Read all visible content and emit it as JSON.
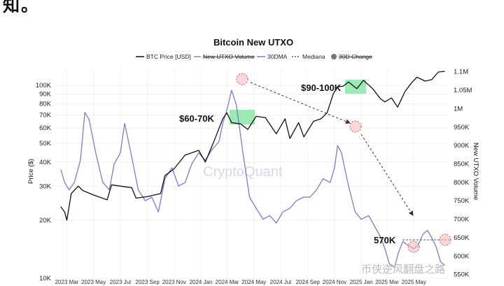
{
  "header_fragment": "知。",
  "chart_data": {
    "type": "line",
    "title": "Bitcoin New UTXO",
    "legend": [
      {
        "label": "BTC Price [USD]",
        "style": "solid",
        "color": "#111111",
        "struck": false
      },
      {
        "label": "New UTXO Volume",
        "style": "solid",
        "color": "#8a8a8a",
        "struck": true
      },
      {
        "label": "30DMA",
        "style": "solid",
        "color": "#7b7bcf",
        "struck": false
      },
      {
        "label": "Mediana",
        "style": "dashed",
        "color": "#555555",
        "struck": false
      },
      {
        "label": "30D Change",
        "style": "dot",
        "color": "#777777",
        "struck": true
      }
    ],
    "legend_position": "top-center",
    "grid": true,
    "x_tick_labels": [
      "2023 Mar",
      "2023 May",
      "2023 Jul",
      "2023 Sep",
      "2023 Nov",
      "2024 Jan",
      "2024 Mar",
      "2024 May",
      "2024 Jul",
      "2024 Sep",
      "2024 Nov",
      "2025 Jan",
      "2025 Mar",
      "2025 May"
    ],
    "y_left": {
      "label": "Price ($)",
      "scale": "log",
      "range": [
        10000,
        120000
      ],
      "tick_labels": [
        "100K",
        "90K",
        "80K",
        "70K",
        "60K",
        "50K",
        "40K",
        "30K",
        "20K",
        "10K"
      ],
      "tick_values": [
        100000,
        90000,
        80000,
        70000,
        60000,
        50000,
        40000,
        30000,
        20000,
        10000
      ]
    },
    "y_right": {
      "label": "New UTXO Volume",
      "range": [
        540000,
        1105000
      ],
      "tick_labels": [
        "1.1M",
        "1.05M",
        "1M",
        "950K",
        "900K",
        "850K",
        "800K",
        "750K",
        "700K",
        "650K",
        "600K",
        "550K"
      ],
      "tick_values": [
        1100000,
        1050000,
        1000000,
        950000,
        900000,
        850000,
        800000,
        750000,
        700000,
        650000,
        600000,
        550000
      ]
    },
    "series": [
      {
        "name": "BTC Price [USD]",
        "axis": "left",
        "x": [
          "2023-03-01",
          "2023-03-10",
          "2023-03-15",
          "2023-03-25",
          "2023-04-10",
          "2023-04-20",
          "2023-05-15",
          "2023-06-15",
          "2023-06-25",
          "2023-07-15",
          "2023-08-10",
          "2023-08-20",
          "2023-09-15",
          "2023-10-15",
          "2023-10-25",
          "2023-11-15",
          "2023-12-10",
          "2024-01-10",
          "2024-01-25",
          "2024-02-15",
          "2024-02-28",
          "2024-03-05",
          "2024-03-14",
          "2024-03-25",
          "2024-04-15",
          "2024-05-01",
          "2024-05-20",
          "2024-06-10",
          "2024-07-05",
          "2024-07-25",
          "2024-08-05",
          "2024-08-25",
          "2024-09-06",
          "2024-09-28",
          "2024-10-15",
          "2024-10-29",
          "2024-11-12",
          "2024-11-22",
          "2024-12-05",
          "2024-12-17",
          "2025-01-05",
          "2025-01-20",
          "2025-02-10",
          "2025-02-28",
          "2025-03-10",
          "2025-03-25",
          "2025-04-08",
          "2025-04-25",
          "2025-05-10",
          "2025-05-22",
          "2025-06-10",
          "2025-06-25",
          "2025-07-10",
          "2025-07-25"
        ],
        "values": [
          23500,
          22000,
          20000,
          27500,
          30000,
          28500,
          27000,
          25500,
          30500,
          30000,
          29500,
          26000,
          26500,
          27500,
          34000,
          37000,
          43500,
          46000,
          40000,
          52000,
          62000,
          67000,
          72000,
          64000,
          63000,
          59000,
          69000,
          68000,
          56000,
          67000,
          53000,
          64000,
          54000,
          65000,
          67000,
          72000,
          90000,
          98000,
          99000,
          104000,
          96000,
          106000,
          96000,
          85000,
          82000,
          86000,
          77000,
          93000,
          103000,
          110000,
          105000,
          107000,
          117000,
          118000
        ]
      },
      {
        "name": "30DMA",
        "axis": "right",
        "x": [
          "2023-03-01",
          "2023-03-10",
          "2023-03-20",
          "2023-04-01",
          "2023-04-15",
          "2023-04-25",
          "2023-05-05",
          "2023-05-20",
          "2023-06-05",
          "2023-06-20",
          "2023-07-01",
          "2023-07-15",
          "2023-07-25",
          "2023-08-10",
          "2023-08-25",
          "2023-09-10",
          "2023-09-25",
          "2023-10-10",
          "2023-10-25",
          "2023-11-10",
          "2023-11-25",
          "2023-12-10",
          "2023-12-25",
          "2024-01-10",
          "2024-01-25",
          "2024-02-10",
          "2024-02-25",
          "2024-03-05",
          "2024-03-15",
          "2024-03-25",
          "2024-04-05",
          "2024-04-20",
          "2024-05-05",
          "2024-05-20",
          "2024-06-05",
          "2024-06-20",
          "2024-07-05",
          "2024-07-20",
          "2024-08-05",
          "2024-08-20",
          "2024-09-05",
          "2024-09-20",
          "2024-10-05",
          "2024-10-20",
          "2024-11-05",
          "2024-11-15",
          "2024-11-22",
          "2024-12-01",
          "2024-12-15",
          "2025-01-01",
          "2025-01-15",
          "2025-02-01",
          "2025-02-15",
          "2025-03-01",
          "2025-03-10",
          "2025-03-20",
          "2025-04-01",
          "2025-04-10",
          "2025-04-20",
          "2025-05-01",
          "2025-05-15",
          "2025-05-25",
          "2025-06-05",
          "2025-06-15",
          "2025-06-25",
          "2025-07-05",
          "2025-07-15",
          "2025-07-25"
        ],
        "values": [
          835000,
          800000,
          780000,
          800000,
          860000,
          990000,
          970000,
          880000,
          800000,
          780000,
          850000,
          880000,
          960000,
          870000,
          780000,
          750000,
          760000,
          720000,
          810000,
          840000,
          790000,
          800000,
          850000,
          880000,
          860000,
          890000,
          910000,
          960000,
          1000000,
          1050000,
          1010000,
          880000,
          760000,
          730000,
          700000,
          710000,
          690000,
          720000,
          730000,
          750000,
          760000,
          760000,
          780000,
          810000,
          800000,
          840000,
          900000,
          880000,
          800000,
          720000,
          700000,
          710000,
          680000,
          650000,
          620000,
          580000,
          570000,
          610000,
          640000,
          630000,
          620000,
          630000,
          660000,
          670000,
          650000,
          625000,
          585000,
          575000
        ]
      }
    ],
    "annotations": [
      "$60-70K",
      "$90-100K",
      "570K"
    ],
    "watermarks": [
      "CryptoQuant",
      "币侠逆风翻盘之路"
    ]
  }
}
